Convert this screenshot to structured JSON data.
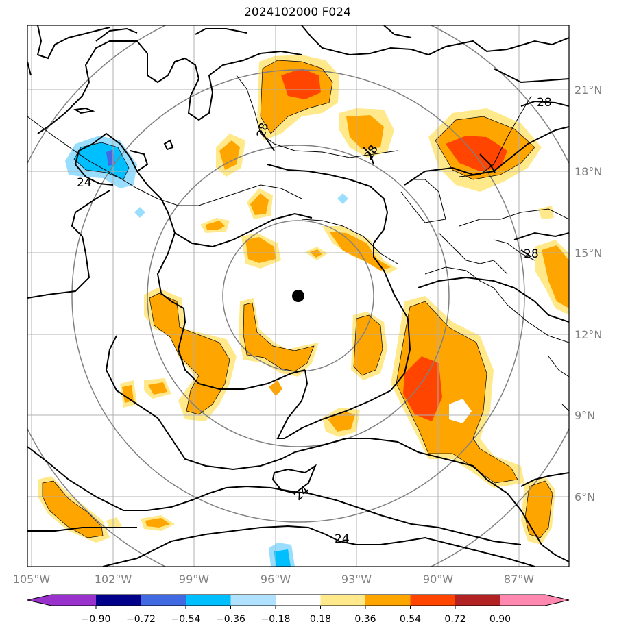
{
  "title": "2024102000 F024",
  "map": {
    "lon_ticks": [
      "105°W",
      "102°W",
      "99°W",
      "96°W",
      "93°W",
      "90°W",
      "87°W"
    ],
    "lat_ticks": [
      "6°N",
      "9°N",
      "12°N",
      "15°N",
      "18°N",
      "21°N"
    ],
    "center_marker": "storm-center",
    "contour_labels": [
      "28",
      "28",
      "28",
      "28",
      "24",
      "24",
      "24"
    ],
    "shading_colors": {
      "light_yellow": "#ffe98a",
      "orange": "#ffa500",
      "red_orange": "#ff4500",
      "light_blue": "#99ddff",
      "blue": "#00bfff",
      "dark_blue": "#4169e1"
    }
  },
  "colorbar": {
    "ticks": [
      "−0.90",
      "−0.72",
      "−0.54",
      "−0.36",
      "−0.18",
      "0.18",
      "0.36",
      "0.54",
      "0.72",
      "0.90"
    ],
    "colors": [
      "#9932cc",
      "#00008b",
      "#4169e1",
      "#00bfff",
      "#b0e2ff",
      "#ffffff",
      "#ffe98a",
      "#ffa500",
      "#ff4500",
      "#b22222",
      "#ff88b0"
    ]
  }
}
